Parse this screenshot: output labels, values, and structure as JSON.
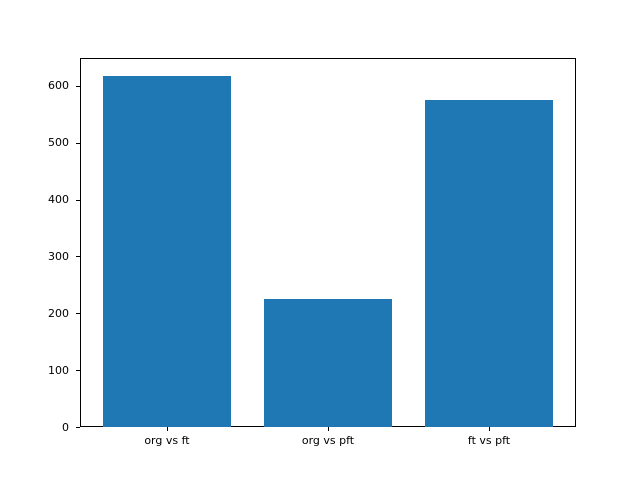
{
  "chart_data": {
    "type": "bar",
    "title": "",
    "xlabel": "",
    "ylabel": "",
    "categories": [
      "org vs ft",
      "org vs pft",
      "ft vs pft"
    ],
    "values": [
      618,
      225,
      575
    ],
    "yticks": [
      0,
      100,
      200,
      300,
      400,
      500,
      600
    ],
    "ylim": [
      0,
      649
    ],
    "bar_color": "#1f77b4",
    "axis_color": "#000000",
    "background_color": "#ffffff",
    "grid": false,
    "legend": null
  }
}
